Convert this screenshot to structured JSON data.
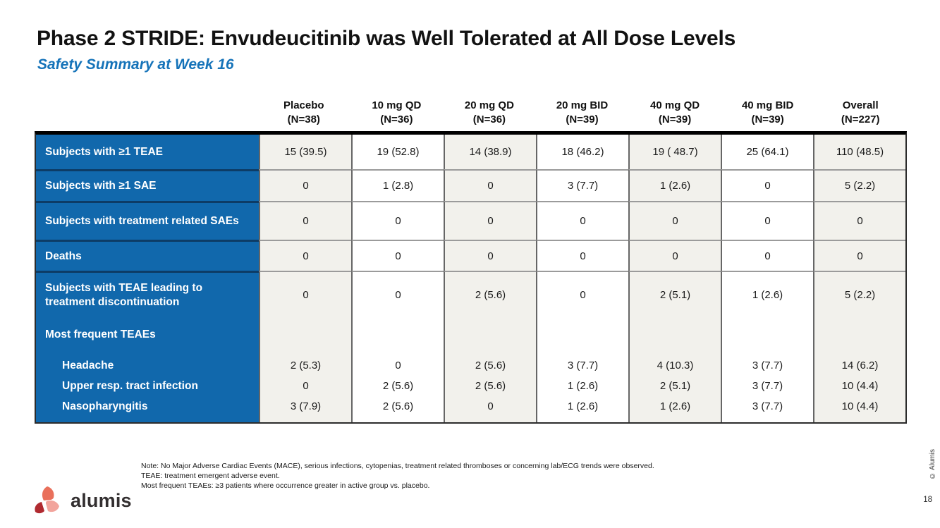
{
  "colors": {
    "accent_blue": "#1168AC",
    "label_divider_blue": "#0D3C66",
    "subtitle_blue": "#1573B9",
    "cell_shaded": "#F2F1EC",
    "cell_white": "#FFFFFF",
    "grid_line_horizontal": "#9B9B9B",
    "grid_line_vertical": "#666666",
    "logo_dark_red": "#B02A30",
    "logo_salmon": "#E9705B",
    "logo_pink": "#F2A49C"
  },
  "slide": {
    "title": "Phase 2 STRIDE: Envudeucitinib was Well Tolerated at All Dose Levels",
    "subtitle": "Safety Summary at Week 16",
    "page_number": "18",
    "copyright": "© Alumis"
  },
  "table": {
    "columns": [
      {
        "label": "Placebo",
        "n": "(N=38)"
      },
      {
        "label": "10 mg QD",
        "n": "(N=36)"
      },
      {
        "label": "20 mg QD",
        "n": "(N=36)"
      },
      {
        "label": "20 mg BID",
        "n": "(N=39)"
      },
      {
        "label": "40 mg QD",
        "n": "(N=39)"
      },
      {
        "label": "40 mg BID",
        "n": "(N=39)"
      },
      {
        "label": "Overall",
        "n": "(N=227)"
      }
    ],
    "rows": [
      {
        "label": "Subjects with ≥1 TEAE",
        "values": [
          "15 (39.5)",
          "19 (52.8)",
          "14 (38.9)",
          "18 (46.2)",
          "19 ( 48.7)",
          "25 (64.1)",
          "110 (48.5)"
        ]
      },
      {
        "label": "Subjects with ≥1 SAE",
        "values": [
          "0",
          "1 (2.8)",
          "0",
          "3 (7.7)",
          "1 (2.6)",
          "0",
          "5 (2.2)"
        ]
      },
      {
        "label": "Subjects with treatment related SAEs",
        "values": [
          "0",
          "0",
          "0",
          "0",
          "0",
          "0",
          "0"
        ]
      },
      {
        "label": "Deaths",
        "values": [
          "0",
          "0",
          "0",
          "0",
          "0",
          "0",
          "0"
        ]
      },
      {
        "label": "Subjects with TEAE leading to treatment discontinuation",
        "values": [
          "0",
          "0",
          "2 (5.6)",
          "0",
          "2 (5.1)",
          "1 (2.6)",
          "5 (2.2)"
        ]
      }
    ],
    "section": {
      "label": "Most frequent TEAEs",
      "subrows": [
        {
          "label": "Headache",
          "values": [
            "2 (5.3)",
            "0",
            "2 (5.6)",
            "3 (7.7)",
            "4 (10.3)",
            "3 (7.7)",
            "14 (6.2)"
          ]
        },
        {
          "label": "Upper resp. tract infection",
          "values": [
            "0",
            "2 (5.6)",
            "2 (5.6)",
            "1 (2.6)",
            "2 (5.1)",
            "3 (7.7)",
            "10 (4.4)"
          ]
        },
        {
          "label": "Nasopharyngitis",
          "values": [
            "3 (7.9)",
            "2 (5.6)",
            "0",
            "1 (2.6)",
            "1 (2.6)",
            "3 (7.7)",
            "10 (4.4)"
          ]
        }
      ]
    }
  },
  "footer": {
    "logo_text": "alumis",
    "notes": [
      "Note: No Major Adverse Cardiac Events (MACE), serious infections, cytopenias, treatment related thromboses or concerning lab/ECG trends were observed.",
      "TEAE: treatment emergent adverse event.",
      "Most frequent TEAEs: ≥3 patients where occurrence greater in active group vs. placebo."
    ]
  }
}
